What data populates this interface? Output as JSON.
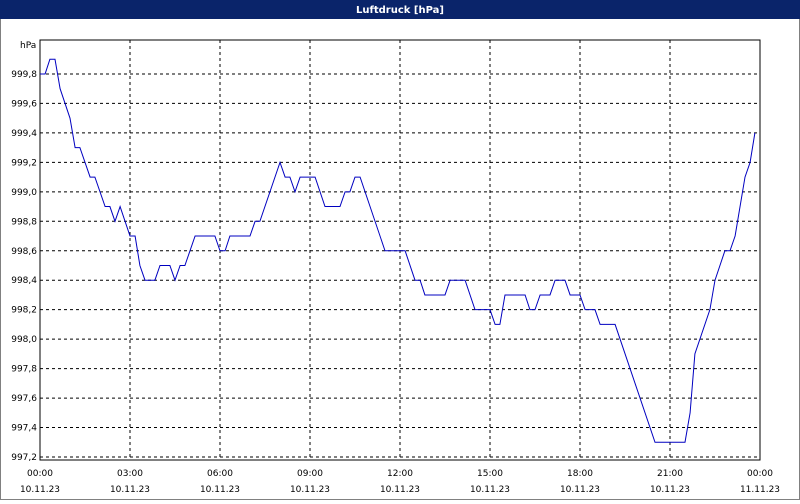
{
  "chart_data": {
    "type": "line",
    "title": "Luftdruck [hPa]",
    "y_label": "hPa",
    "xlim": [
      0,
      24
    ],
    "ylim": [
      997.2,
      1000.0
    ],
    "grid": true,
    "xticks": [
      {
        "value": 0,
        "label": "00:00",
        "date": "10.11.23"
      },
      {
        "value": 3,
        "label": "03:00",
        "date": "10.11.23"
      },
      {
        "value": 6,
        "label": "06:00",
        "date": "10.11.23"
      },
      {
        "value": 9,
        "label": "09:00",
        "date": "10.11.23"
      },
      {
        "value": 12,
        "label": "12:00",
        "date": "10.11.23"
      },
      {
        "value": 15,
        "label": "15:00",
        "date": "10.11.23"
      },
      {
        "value": 18,
        "label": "18:00",
        "date": "10.11.23"
      },
      {
        "value": 21,
        "label": "21:00",
        "date": "10.11.23"
      },
      {
        "value": 24,
        "label": "00:00",
        "date": "11.11.23"
      }
    ],
    "yticks": [
      {
        "value": 997.2,
        "label": "997,2"
      },
      {
        "value": 997.4,
        "label": "997,4"
      },
      {
        "value": 997.6,
        "label": "997,6"
      },
      {
        "value": 997.8,
        "label": "997,8"
      },
      {
        "value": 998.0,
        "label": "998,0"
      },
      {
        "value": 998.2,
        "label": "998,2"
      },
      {
        "value": 998.4,
        "label": "998,4"
      },
      {
        "value": 998.6,
        "label": "998,6"
      },
      {
        "value": 998.8,
        "label": "998,8"
      },
      {
        "value": 999.0,
        "label": "999,0"
      },
      {
        "value": 999.2,
        "label": "999,2"
      },
      {
        "value": 999.4,
        "label": "999,4"
      },
      {
        "value": 999.6,
        "label": "999,6"
      },
      {
        "value": 999.8,
        "label": "999,8"
      }
    ],
    "x": [
      0,
      0.17,
      0.33,
      0.5,
      0.67,
      1,
      1.17,
      1.33,
      1.67,
      1.83,
      2.17,
      2.33,
      2.5,
      2.67,
      3,
      3.17,
      3.33,
      3.5,
      3.83,
      4,
      4.33,
      4.5,
      4.67,
      4.83,
      5.17,
      5.83,
      6,
      6.17,
      6.33,
      7,
      7.17,
      7.33,
      8,
      8.17,
      8.33,
      8.5,
      8.67,
      9.17,
      9.5,
      10,
      10.17,
      10.33,
      10.5,
      10.67,
      11.5,
      12.17,
      12.5,
      12.67,
      12.83,
      13.5,
      13.67,
      14.17,
      14.5,
      15,
      15.17,
      15.33,
      15.5,
      16.17,
      16.33,
      16.5,
      16.67,
      17,
      17.17,
      17.5,
      17.67,
      18,
      18.17,
      18.5,
      18.67,
      19.17,
      20.5,
      21.5,
      21.67,
      21.83,
      22.33,
      22.5,
      22.83,
      23,
      23.17,
      23.5,
      23.67,
      23.83
    ],
    "series": [
      {
        "name": "Luftdruck",
        "color": "#0000c0",
        "values": [
          999.8,
          999.8,
          999.9,
          999.9,
          999.7,
          999.5,
          999.3,
          999.3,
          999.1,
          999.1,
          998.9,
          998.9,
          998.8,
          998.9,
          998.7,
          998.7,
          998.5,
          998.4,
          998.4,
          998.5,
          998.5,
          998.4,
          998.5,
          998.5,
          998.7,
          998.7,
          998.6,
          998.6,
          998.7,
          998.7,
          998.8,
          998.8,
          999.2,
          999.1,
          999.1,
          999.0,
          999.1,
          999.1,
          998.9,
          998.9,
          999.0,
          999.0,
          999.1,
          999.1,
          998.6,
          998.6,
          998.4,
          998.4,
          998.3,
          998.3,
          998.4,
          998.4,
          998.2,
          998.2,
          998.1,
          998.1,
          998.3,
          998.3,
          998.2,
          998.2,
          998.3,
          998.3,
          998.4,
          998.4,
          998.3,
          998.3,
          998.2,
          998.2,
          998.1,
          998.1,
          997.3,
          997.3,
          997.5,
          997.9,
          998.2,
          998.4,
          998.6,
          998.6,
          998.7,
          999.1,
          999.2,
          999.4
        ]
      }
    ]
  }
}
